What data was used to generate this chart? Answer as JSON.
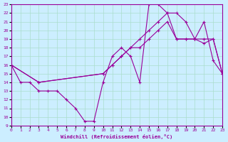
{
  "xlabel": "Windchill (Refroidissement éolien,°C)",
  "bg_color": "#cceeff",
  "line_color": "#990099",
  "grid_color": "#aaddcc",
  "xlim": [
    0,
    23
  ],
  "ylim": [
    9,
    23
  ],
  "xticks": [
    0,
    1,
    2,
    3,
    4,
    5,
    6,
    7,
    8,
    9,
    10,
    11,
    12,
    13,
    14,
    15,
    16,
    17,
    18,
    19,
    20,
    21,
    22,
    23
  ],
  "yticks": [
    9,
    10,
    11,
    12,
    13,
    14,
    15,
    16,
    17,
    18,
    19,
    20,
    21,
    22,
    23
  ],
  "curve1_x": [
    0,
    1,
    2,
    3,
    4,
    5,
    6,
    7,
    8,
    9,
    10,
    11,
    12,
    13,
    14,
    15,
    16,
    17,
    18,
    19,
    20,
    21,
    22,
    23
  ],
  "curve1_y": [
    16,
    14,
    14,
    13,
    13,
    13,
    12,
    11,
    9.5,
    9.5,
    14,
    17,
    18,
    17,
    14,
    23,
    23,
    22,
    19,
    19,
    19,
    21,
    16.5,
    15
  ],
  "curve2_x": [
    0,
    3,
    10,
    11,
    12,
    13,
    14,
    15,
    16,
    17,
    18,
    19,
    20,
    21,
    22,
    23
  ],
  "curve2_y": [
    16,
    14,
    15,
    16,
    17,
    18,
    19,
    20,
    21,
    22,
    22,
    21,
    19,
    19,
    19,
    15
  ],
  "curve3_x": [
    0,
    3,
    10,
    11,
    12,
    13,
    14,
    15,
    16,
    17,
    18,
    19,
    20,
    21,
    22,
    23
  ],
  "curve3_y": [
    16,
    14,
    15,
    16,
    17,
    18,
    18,
    19,
    20,
    21,
    19,
    19,
    19,
    18.5,
    19,
    15
  ]
}
